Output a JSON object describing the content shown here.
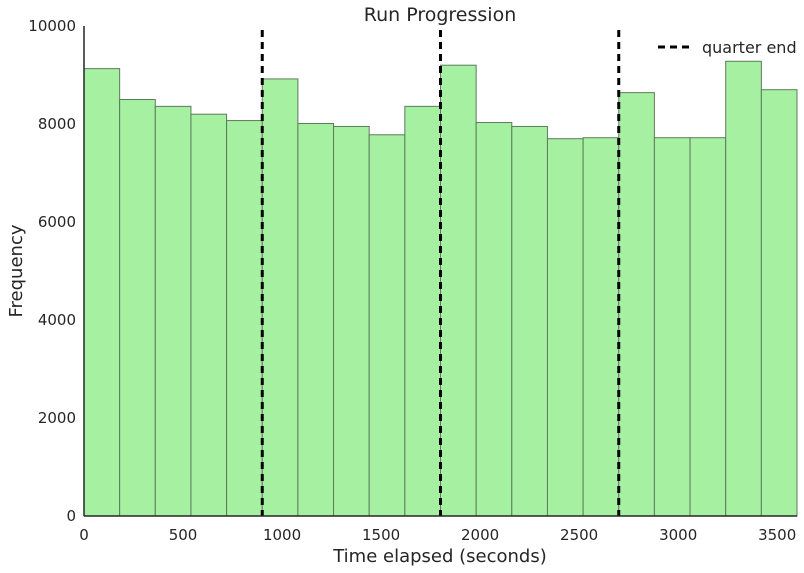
{
  "chart_data": {
    "type": "bar",
    "title": "Run Progression",
    "xlabel": "Time elapsed (seconds)",
    "ylabel": "Frequency",
    "xlim": [
      0,
      3600
    ],
    "ylim": [
      0,
      10000
    ],
    "xticks": [
      0,
      500,
      1000,
      1500,
      2000,
      2500,
      3000,
      3500
    ],
    "yticks": [
      0,
      2000,
      4000,
      6000,
      8000,
      10000
    ],
    "bin_edges": [
      0,
      180,
      360,
      540,
      720,
      900,
      1080,
      1260,
      1440,
      1620,
      1800,
      1980,
      2160,
      2340,
      2520,
      2700,
      2880,
      3060,
      3240,
      3420,
      3600
    ],
    "values": [
      9130,
      8500,
      8360,
      8200,
      8070,
      8920,
      8010,
      7950,
      7780,
      8360,
      9200,
      8030,
      7950,
      7700,
      7720,
      8640,
      7720,
      7720,
      9280,
      8700
    ],
    "bar_color": "#a6f0a2",
    "bar_edge_color": "#5e7a5c",
    "grid": false,
    "vlines": {
      "label": "quarter end",
      "x": [
        900,
        1800,
        2700
      ],
      "style": "dashed",
      "color": "#000000"
    },
    "legend_position": "top-right"
  }
}
